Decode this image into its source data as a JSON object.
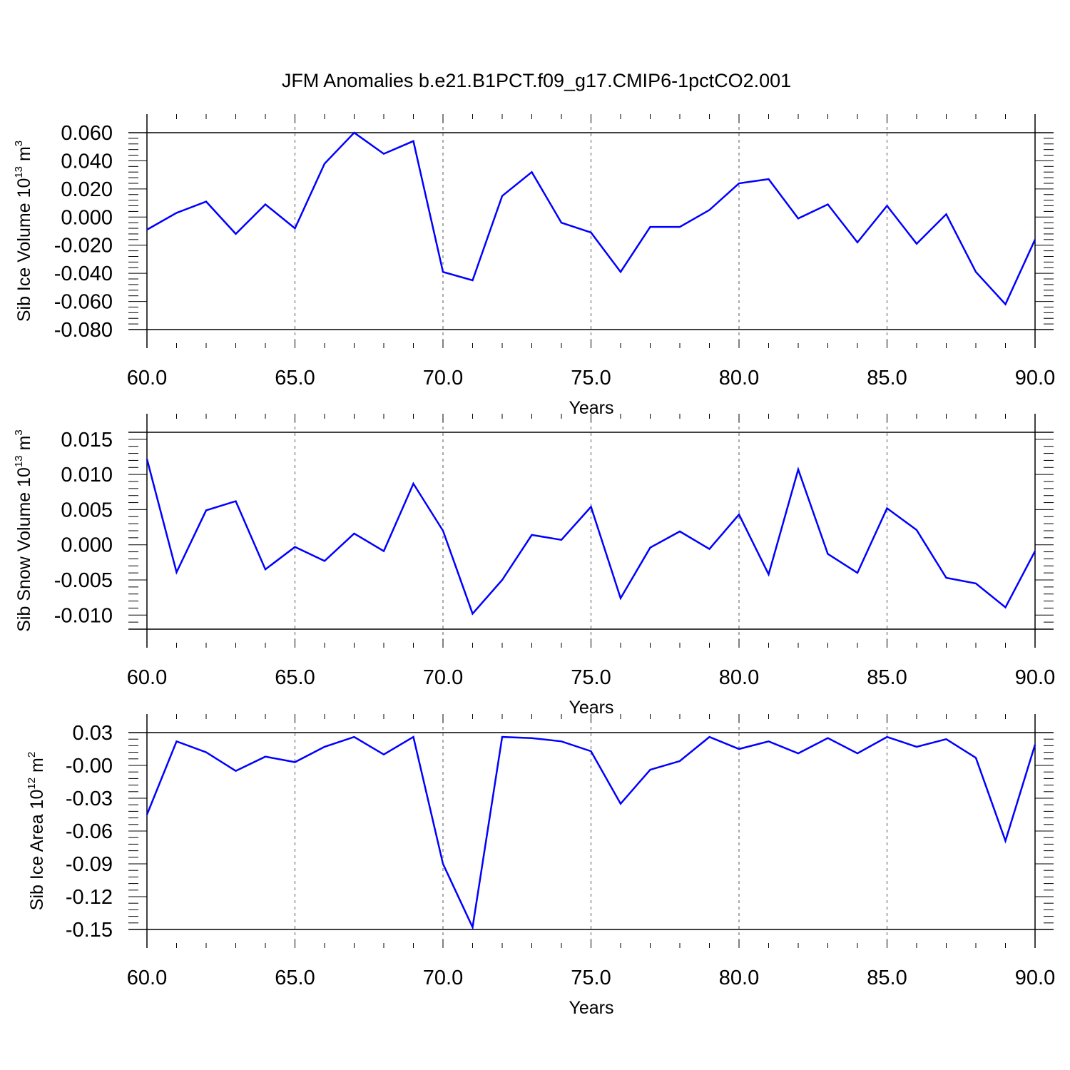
{
  "title": "JFM Anomalies b.e21.B1PCT.f09_g17.CMIP6-1pctCO2.001",
  "colors": {
    "line": "#0000ff",
    "axis": "#000000",
    "grid": "#555555",
    "background": "#ffffff"
  },
  "chart_data": [
    {
      "type": "line",
      "name": "ice-volume",
      "ylabel": {
        "text": "Sib Ice Volume 10",
        "exp": "13",
        "unit": " m",
        "unit_exp": "3"
      },
      "xlabel": "Years",
      "xlim": [
        60,
        90
      ],
      "ylim": [
        -0.08,
        0.06
      ],
      "xticks": [
        60,
        65,
        70,
        75,
        80,
        85,
        90
      ],
      "xtick_labels": [
        "60.0",
        "65.0",
        "70.0",
        "75.0",
        "80.0",
        "85.0",
        "90.0"
      ],
      "yticks": [
        0.06,
        0.04,
        0.02,
        0.0,
        -0.02,
        -0.04,
        -0.06,
        -0.08
      ],
      "ytick_labels": [
        "0.060",
        "0.040",
        "0.020",
        "0.000",
        "-0.020",
        "-0.040",
        "-0.060",
        "-0.080"
      ],
      "grid": "x-dashed",
      "x": [
        60,
        61,
        62,
        63,
        64,
        65,
        66,
        67,
        68,
        69,
        70,
        71,
        72,
        73,
        74,
        75,
        76,
        77,
        78,
        79,
        80,
        81,
        82,
        83,
        84,
        85,
        86,
        87,
        88,
        89,
        90
      ],
      "values": [
        -0.009,
        0.003,
        0.011,
        -0.012,
        0.009,
        -0.008,
        0.038,
        0.06,
        0.045,
        0.054,
        -0.039,
        -0.045,
        0.015,
        0.032,
        -0.004,
        -0.011,
        -0.039,
        -0.007,
        -0.007,
        0.005,
        0.024,
        0.027,
        -0.001,
        0.009,
        -0.018,
        0.008,
        -0.019,
        0.002,
        -0.039,
        -0.062,
        -0.016
      ]
    },
    {
      "type": "line",
      "name": "snow-volume",
      "ylabel": {
        "text": "Sib Snow Volume 10",
        "exp": "13",
        "unit": " m",
        "unit_exp": "3"
      },
      "xlabel": "Years",
      "xlim": [
        60,
        90
      ],
      "ylim": [
        -0.012,
        0.016
      ],
      "xticks": [
        60,
        65,
        70,
        75,
        80,
        85,
        90
      ],
      "xtick_labels": [
        "60.0",
        "65.0",
        "70.0",
        "75.0",
        "80.0",
        "85.0",
        "90.0"
      ],
      "yticks": [
        0.015,
        0.01,
        0.005,
        0.0,
        -0.005,
        -0.01
      ],
      "ytick_labels": [
        "0.015",
        "0.010",
        "0.005",
        "0.000",
        "-0.005",
        "-0.010"
      ],
      "grid": "x-dashed",
      "x": [
        60,
        61,
        62,
        63,
        64,
        65,
        66,
        67,
        68,
        69,
        70,
        71,
        72,
        73,
        74,
        75,
        76,
        77,
        78,
        79,
        80,
        81,
        82,
        83,
        84,
        85,
        86,
        87,
        88,
        89,
        90
      ],
      "values": [
        0.0122,
        -0.0039,
        0.0049,
        0.0062,
        -0.0035,
        -0.0003,
        -0.0023,
        0.0016,
        -0.0009,
        0.0087,
        0.002,
        -0.0098,
        -0.005,
        0.0014,
        0.0007,
        0.0054,
        -0.0076,
        -0.0004,
        0.0019,
        -0.0006,
        0.0043,
        -0.0042,
        0.0107,
        -0.0013,
        -0.004,
        0.0052,
        0.0021,
        -0.0047,
        -0.0055,
        -0.0089,
        -0.0009
      ]
    },
    {
      "type": "line",
      "name": "ice-area",
      "ylabel": {
        "text": "Sib Ice Area 10",
        "exp": "12",
        "unit": " m",
        "unit_exp": "2"
      },
      "xlabel": "Years",
      "xlim": [
        60,
        90
      ],
      "ylim": [
        -0.15,
        0.03
      ],
      "xticks": [
        60,
        65,
        70,
        75,
        80,
        85,
        90
      ],
      "xtick_labels": [
        "60.0",
        "65.0",
        "70.0",
        "75.0",
        "80.0",
        "85.0",
        "90.0"
      ],
      "yticks": [
        0.03,
        0.0,
        -0.03,
        -0.06,
        -0.09,
        -0.12,
        -0.15
      ],
      "ytick_labels": [
        "0.03",
        "-0.00",
        "-0.03",
        "-0.06",
        "-0.09",
        "-0.12",
        "-0.15"
      ],
      "grid": "x-dashed",
      "x": [
        60,
        61,
        62,
        63,
        64,
        65,
        66,
        67,
        68,
        69,
        70,
        71,
        72,
        73,
        74,
        75,
        76,
        77,
        78,
        79,
        80,
        81,
        82,
        83,
        84,
        85,
        86,
        87,
        88,
        89,
        90
      ],
      "values": [
        -0.045,
        0.022,
        0.012,
        -0.005,
        0.008,
        0.003,
        0.017,
        0.026,
        0.01,
        0.026,
        -0.09,
        -0.148,
        0.026,
        0.025,
        0.022,
        0.013,
        -0.035,
        -0.004,
        0.004,
        0.026,
        0.015,
        0.022,
        0.011,
        0.025,
        0.011,
        0.026,
        0.017,
        0.024,
        0.007,
        -0.069,
        0.019
      ]
    }
  ]
}
